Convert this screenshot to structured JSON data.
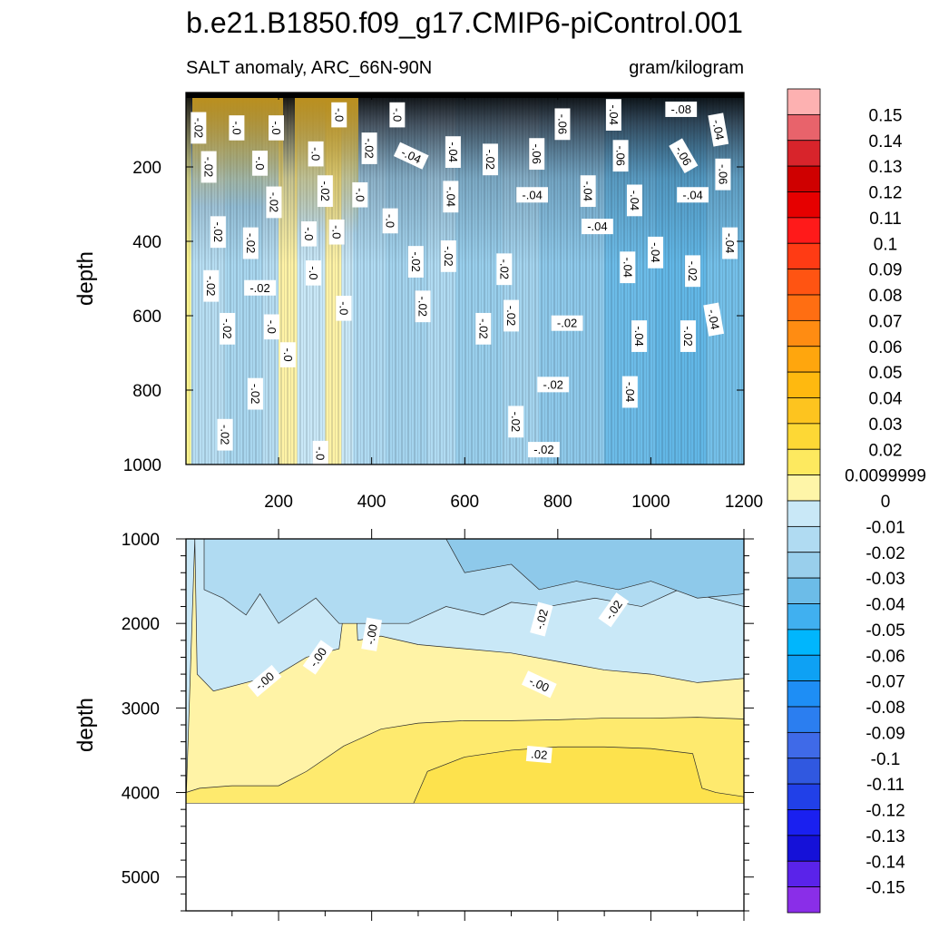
{
  "chart_data": [
    {
      "type": "heatmap",
      "panel": "upper",
      "title": "b.e21.B1850.f09_g17.CMIP6-piControl.001",
      "left_subtitle": "SALT anomaly, ARC_66N-90N",
      "right_subtitle": "gram/kilogram",
      "xlabel": "",
      "ylabel": "depth",
      "xlim": [
        1,
        1200
      ],
      "ylim": [
        1000,
        0
      ],
      "x_ticks": [
        "200",
        "400",
        "600",
        "800",
        "1000",
        "1200"
      ],
      "y_ticks": [
        "200",
        "400",
        "600",
        "800",
        "1000"
      ],
      "bands": [
        {
          "x0": 1,
          "x1": 12,
          "color": "#fef690"
        },
        {
          "x0": 12,
          "x1": 85,
          "color": "#b7def2"
        },
        {
          "x0": 85,
          "x1": 165,
          "color": "#a9d7ef"
        },
        {
          "x0": 165,
          "x1": 200,
          "color": "#b7def2"
        },
        {
          "x0": 200,
          "x1": 240,
          "color": "#fff3a6"
        },
        {
          "x0": 240,
          "x1": 300,
          "color": "#c9e8f7"
        },
        {
          "x0": 300,
          "x1": 335,
          "color": "#fff3a6"
        },
        {
          "x0": 335,
          "x1": 360,
          "color": "#c9e8f7"
        },
        {
          "x0": 360,
          "x1": 430,
          "color": "#b0dbf2"
        },
        {
          "x0": 430,
          "x1": 520,
          "color": "#a4d4ee"
        },
        {
          "x0": 520,
          "x1": 580,
          "color": "#b0dbf2"
        },
        {
          "x0": 580,
          "x1": 680,
          "color": "#99cfec"
        },
        {
          "x0": 680,
          "x1": 760,
          "color": "#a4d4ee"
        },
        {
          "x0": 760,
          "x1": 900,
          "color": "#8ec9ea"
        },
        {
          "x0": 900,
          "x1": 1010,
          "color": "#6cbce8"
        },
        {
          "x0": 1010,
          "x1": 1120,
          "color": "#62b7e6"
        },
        {
          "x0": 1120,
          "x1": 1200,
          "color": "#74c0e9"
        }
      ],
      "contour_labels": [
        {
          "text": "-.02",
          "x": 28,
          "y": 95,
          "angle": 90
        },
        {
          "text": "-.0",
          "x": 110,
          "y": 95,
          "angle": 90
        },
        {
          "text": "-.0",
          "x": 195,
          "y": 95,
          "angle": 90
        },
        {
          "text": "-.0",
          "x": 330,
          "y": 60,
          "angle": 90
        },
        {
          "text": "-.0",
          "x": 455,
          "y": 60,
          "angle": 90
        },
        {
          "text": "-.02",
          "x": 395,
          "y": 150,
          "angle": 90
        },
        {
          "text": "-.04",
          "x": 485,
          "y": 170,
          "angle": 25
        },
        {
          "text": "-.04",
          "x": 575,
          "y": 160,
          "angle": 90
        },
        {
          "text": "-.02",
          "x": 655,
          "y": 180,
          "angle": 90
        },
        {
          "text": "-.06",
          "x": 755,
          "y": 165,
          "angle": 90
        },
        {
          "text": "-.06",
          "x": 810,
          "y": 85,
          "angle": 90
        },
        {
          "text": "-.04",
          "x": 920,
          "y": 60,
          "angle": 90
        },
        {
          "text": "-.08",
          "x": 1065,
          "y": 45,
          "angle": 0
        },
        {
          "text": "-.04",
          "x": 1145,
          "y": 100,
          "angle": 80
        },
        {
          "text": "-.06",
          "x": 935,
          "y": 170,
          "angle": 90
        },
        {
          "text": "-.06",
          "x": 1070,
          "y": 170,
          "angle": 60
        },
        {
          "text": "-.06",
          "x": 1155,
          "y": 220,
          "angle": 90
        },
        {
          "text": "-.02",
          "x": 50,
          "y": 200,
          "angle": 90
        },
        {
          "text": "-.0",
          "x": 160,
          "y": 190,
          "angle": 90
        },
        {
          "text": "-.0",
          "x": 280,
          "y": 165,
          "angle": 90
        },
        {
          "text": "-.02",
          "x": 300,
          "y": 265,
          "angle": 90
        },
        {
          "text": "-.02",
          "x": 190,
          "y": 295,
          "angle": 90
        },
        {
          "text": "-.0",
          "x": 375,
          "y": 275,
          "angle": 90
        },
        {
          "text": "-.04",
          "x": 570,
          "y": 280,
          "angle": 90
        },
        {
          "text": "-.04",
          "x": 745,
          "y": 275,
          "angle": 0
        },
        {
          "text": "-.04",
          "x": 865,
          "y": 265,
          "angle": 90
        },
        {
          "text": "-.04",
          "x": 965,
          "y": 290,
          "angle": 90
        },
        {
          "text": "-.04",
          "x": 1090,
          "y": 275,
          "angle": 0
        },
        {
          "text": "-.04",
          "x": 885,
          "y": 360,
          "angle": 0
        },
        {
          "text": "-.0",
          "x": 440,
          "y": 345,
          "angle": 90
        },
        {
          "text": "-.02",
          "x": 70,
          "y": 375,
          "angle": 90
        },
        {
          "text": "-.02",
          "x": 140,
          "y": 405,
          "angle": 90
        },
        {
          "text": "-.0",
          "x": 265,
          "y": 380,
          "angle": 90
        },
        {
          "text": "-.0",
          "x": 325,
          "y": 375,
          "angle": 90
        },
        {
          "text": "-.04",
          "x": 1170,
          "y": 405,
          "angle": 90
        },
        {
          "text": "-.04",
          "x": 1010,
          "y": 430,
          "angle": 90
        },
        {
          "text": "-.02",
          "x": 495,
          "y": 455,
          "angle": 90
        },
        {
          "text": "-.02",
          "x": 565,
          "y": 440,
          "angle": 90
        },
        {
          "text": "-.02",
          "x": 685,
          "y": 475,
          "angle": 90
        },
        {
          "text": "-.04",
          "x": 950,
          "y": 470,
          "angle": 90
        },
        {
          "text": "-.02",
          "x": 1090,
          "y": 480,
          "angle": 90
        },
        {
          "text": "-.0",
          "x": 275,
          "y": 485,
          "angle": 90
        },
        {
          "text": "-.02",
          "x": 55,
          "y": 520,
          "angle": 90
        },
        {
          "text": "-.02",
          "x": 160,
          "y": 525,
          "angle": 0
        },
        {
          "text": "-.02",
          "x": 510,
          "y": 575,
          "angle": 90
        },
        {
          "text": "-.0",
          "x": 340,
          "y": 580,
          "angle": 90
        },
        {
          "text": "-.02",
          "x": 700,
          "y": 600,
          "angle": 90
        },
        {
          "text": "-.04",
          "x": 1135,
          "y": 610,
          "angle": 80
        },
        {
          "text": "-.02",
          "x": 90,
          "y": 635,
          "angle": 90
        },
        {
          "text": "-.0",
          "x": 185,
          "y": 630,
          "angle": 90
        },
        {
          "text": "-.02",
          "x": 640,
          "y": 635,
          "angle": 90
        },
        {
          "text": "-.02",
          "x": 820,
          "y": 620,
          "angle": 0
        },
        {
          "text": "-.04",
          "x": 975,
          "y": 655,
          "angle": 90
        },
        {
          "text": "-.02",
          "x": 1080,
          "y": 655,
          "angle": 90
        },
        {
          "text": "-.0",
          "x": 220,
          "y": 705,
          "angle": 90
        },
        {
          "text": "-.02",
          "x": 150,
          "y": 810,
          "angle": 90
        },
        {
          "text": "-.02",
          "x": 790,
          "y": 785,
          "angle": 0
        },
        {
          "text": "-.04",
          "x": 955,
          "y": 805,
          "angle": 90
        },
        {
          "text": "-.02",
          "x": 710,
          "y": 885,
          "angle": 90
        },
        {
          "text": "-.02",
          "x": 85,
          "y": 920,
          "angle": 90
        },
        {
          "text": "-.0",
          "x": 290,
          "y": 970,
          "angle": 90
        },
        {
          "text": "-.02",
          "x": 770,
          "y": 960,
          "angle": 0
        }
      ]
    },
    {
      "type": "heatmap",
      "panel": "lower",
      "xlabel": "",
      "ylabel": "depth",
      "xlim": [
        1,
        1200
      ],
      "ylim": [
        5400,
        1000
      ],
      "y_ticks": [
        "1000",
        "2000",
        "3000",
        "4000",
        "5000"
      ],
      "bottom_depth": 4130,
      "layers": [
        {
          "color": "#c9e8f7",
          "boundary": [
            [
              1,
              1000
            ],
            [
              1200,
              1000
            ]
          ]
        },
        {
          "color": "#a9d7ef",
          "boundary": [
            [
              1,
              1000
            ],
            [
              1200,
              1000
            ]
          ]
        },
        {
          "color": "#8ec9ea",
          "boundary": [
            [
              1,
              1000
            ],
            [
              1200,
              1000
            ]
          ]
        },
        {
          "color": "#fff3a6",
          "boundary": [
            [
              1,
              1000
            ],
            [
              1200,
              1000
            ]
          ]
        },
        {
          "color": "#feea6e",
          "boundary": [
            [
              1,
              1000
            ],
            [
              1200,
              1000
            ]
          ]
        },
        {
          "color": "#fde24d",
          "boundary": [
            [
              1,
              1000
            ],
            [
              1200,
              1000
            ]
          ]
        }
      ],
      "bands": [
        {
          "color": "#c9e8f7",
          "top": [
            [
              1,
              1000
            ],
            [
              1200,
              1000
            ]
          ],
          "bottom": [
            [
              1,
              4130
            ],
            [
              1200,
              4130
            ]
          ]
        },
        {
          "color": "#fff3a6",
          "top": [
            [
              20,
              1000
            ],
            [
              25,
              2600
            ],
            [
              60,
              2800
            ],
            [
              200,
              2600
            ],
            [
              260,
              2400
            ],
            [
              330,
              2300
            ],
            [
              360,
              1000
            ],
            [
              370,
              2200
            ],
            [
              420,
              2150
            ],
            [
              500,
              2250
            ],
            [
              700,
              2350
            ],
            [
              800,
              2450
            ],
            [
              900,
              2550
            ],
            [
              1000,
              2600
            ],
            [
              1100,
              2700
            ],
            [
              1200,
              2650
            ]
          ],
          "bottom": [
            [
              1,
              4130
            ],
            [
              1200,
              4130
            ]
          ]
        },
        {
          "color": "#feea6e",
          "top": [
            [
              1,
              4000
            ],
            [
              30,
              3950
            ],
            [
              100,
              3920
            ],
            [
              200,
              3920
            ],
            [
              260,
              3750
            ],
            [
              340,
              3450
            ],
            [
              420,
              3250
            ],
            [
              500,
              3180
            ],
            [
              600,
              3150
            ],
            [
              700,
              3150
            ],
            [
              800,
              3140
            ],
            [
              900,
              3120
            ],
            [
              1000,
              3120
            ],
            [
              1100,
              3110
            ],
            [
              1200,
              3130
            ]
          ],
          "bottom": [
            [
              1,
              4130
            ],
            [
              1200,
              4130
            ]
          ]
        },
        {
          "color": "#fde24d",
          "top": [
            [
              490,
              4130
            ],
            [
              520,
              3750
            ],
            [
              600,
              3580
            ],
            [
              700,
              3500
            ],
            [
              800,
              3460
            ],
            [
              900,
              3460
            ],
            [
              1000,
              3480
            ],
            [
              1090,
              3540
            ],
            [
              1110,
              3950
            ],
            [
              1140,
              4000
            ],
            [
              1200,
              4050
            ]
          ],
          "bottom": [
            [
              1,
              4130
            ],
            [
              1200,
              4130
            ]
          ]
        },
        {
          "color": "#b0dbf2",
          "top": [
            [
              40,
              1000
            ],
            [
              40,
              1600
            ],
            [
              80,
              1700
            ],
            [
              130,
              1900
            ],
            [
              160,
              1650
            ],
            [
              200,
              2000
            ],
            [
              280,
              1700
            ],
            [
              330,
              2000
            ],
            [
              480,
              2000
            ],
            [
              560,
              1800
            ],
            [
              640,
              1900
            ],
            [
              700,
              1750
            ],
            [
              780,
              1800
            ],
            [
              880,
              1700
            ],
            [
              980,
              1800
            ],
            [
              1060,
              1600
            ],
            [
              1200,
              1800
            ]
          ],
          "bottom": [
            [
              40,
              1000
            ],
            [
              1200,
              1000
            ]
          ]
        },
        {
          "color": "#8ec9ea",
          "top": [
            [
              560,
              1000
            ],
            [
              600,
              1400
            ],
            [
              700,
              1300
            ],
            [
              760,
              1600
            ],
            [
              840,
              1500
            ],
            [
              930,
              1600
            ],
            [
              1000,
              1500
            ],
            [
              1100,
              1700
            ],
            [
              1200,
              1650
            ]
          ],
          "bottom": [
            [
              560,
              1000
            ],
            [
              1200,
              1000
            ]
          ]
        }
      ],
      "contour_labels": [
        {
          "text": "-.02",
          "x": 765,
          "y": 1950,
          "angle": -75
        },
        {
          "text": "-.02",
          "x": 920,
          "y": 1840,
          "angle": -55
        },
        {
          "text": "-.00",
          "x": 285,
          "y": 2400,
          "angle": -55
        },
        {
          "text": "-.00",
          "x": 400,
          "y": 2130,
          "angle": -80
        },
        {
          "text": "-.00",
          "x": 170,
          "y": 2680,
          "angle": -40
        },
        {
          "text": "-.00",
          "x": 760,
          "y": 2720,
          "angle": 25
        },
        {
          "text": ".02",
          "x": 760,
          "y": 3550,
          "angle": 5
        }
      ]
    }
  ],
  "colorbar": {
    "labels": [
      "0.15",
      "0.14",
      "0.13",
      "0.12",
      "0.11",
      "0.1",
      "0.09",
      "0.08",
      "0.07",
      "0.06",
      "0.05",
      "0.04",
      "0.03",
      "0.02",
      "0.0099999",
      "0",
      "-0.01",
      "-0.02",
      "-0.03",
      "-0.04",
      "-0.05",
      "-0.06",
      "-0.07",
      "-0.08",
      "-0.09",
      "-0.1",
      "-0.11",
      "-0.12",
      "-0.13",
      "-0.14",
      "-0.15"
    ],
    "colors": [
      "#fdb1b1",
      "#e8636b",
      "#d8242b",
      "#cf0000",
      "#e60000",
      "#ff1a1a",
      "#ff3b14",
      "#ff5412",
      "#ff6e12",
      "#ff8c12",
      "#ffa60d",
      "#ffb90f",
      "#fdc41f",
      "#fdd835",
      "#fde95f",
      "#fef5a8",
      "#c9e8f7",
      "#b0dbf2",
      "#99cfec",
      "#6cbce8",
      "#40b0f0",
      "#00b6fd",
      "#0ea1f4",
      "#1e8ef5",
      "#2b7ef0",
      "#3f6ae8",
      "#3058e0",
      "#2140e8",
      "#1a20f0",
      "#1511d8",
      "#5a23ea",
      "#8a2ee8"
    ]
  }
}
